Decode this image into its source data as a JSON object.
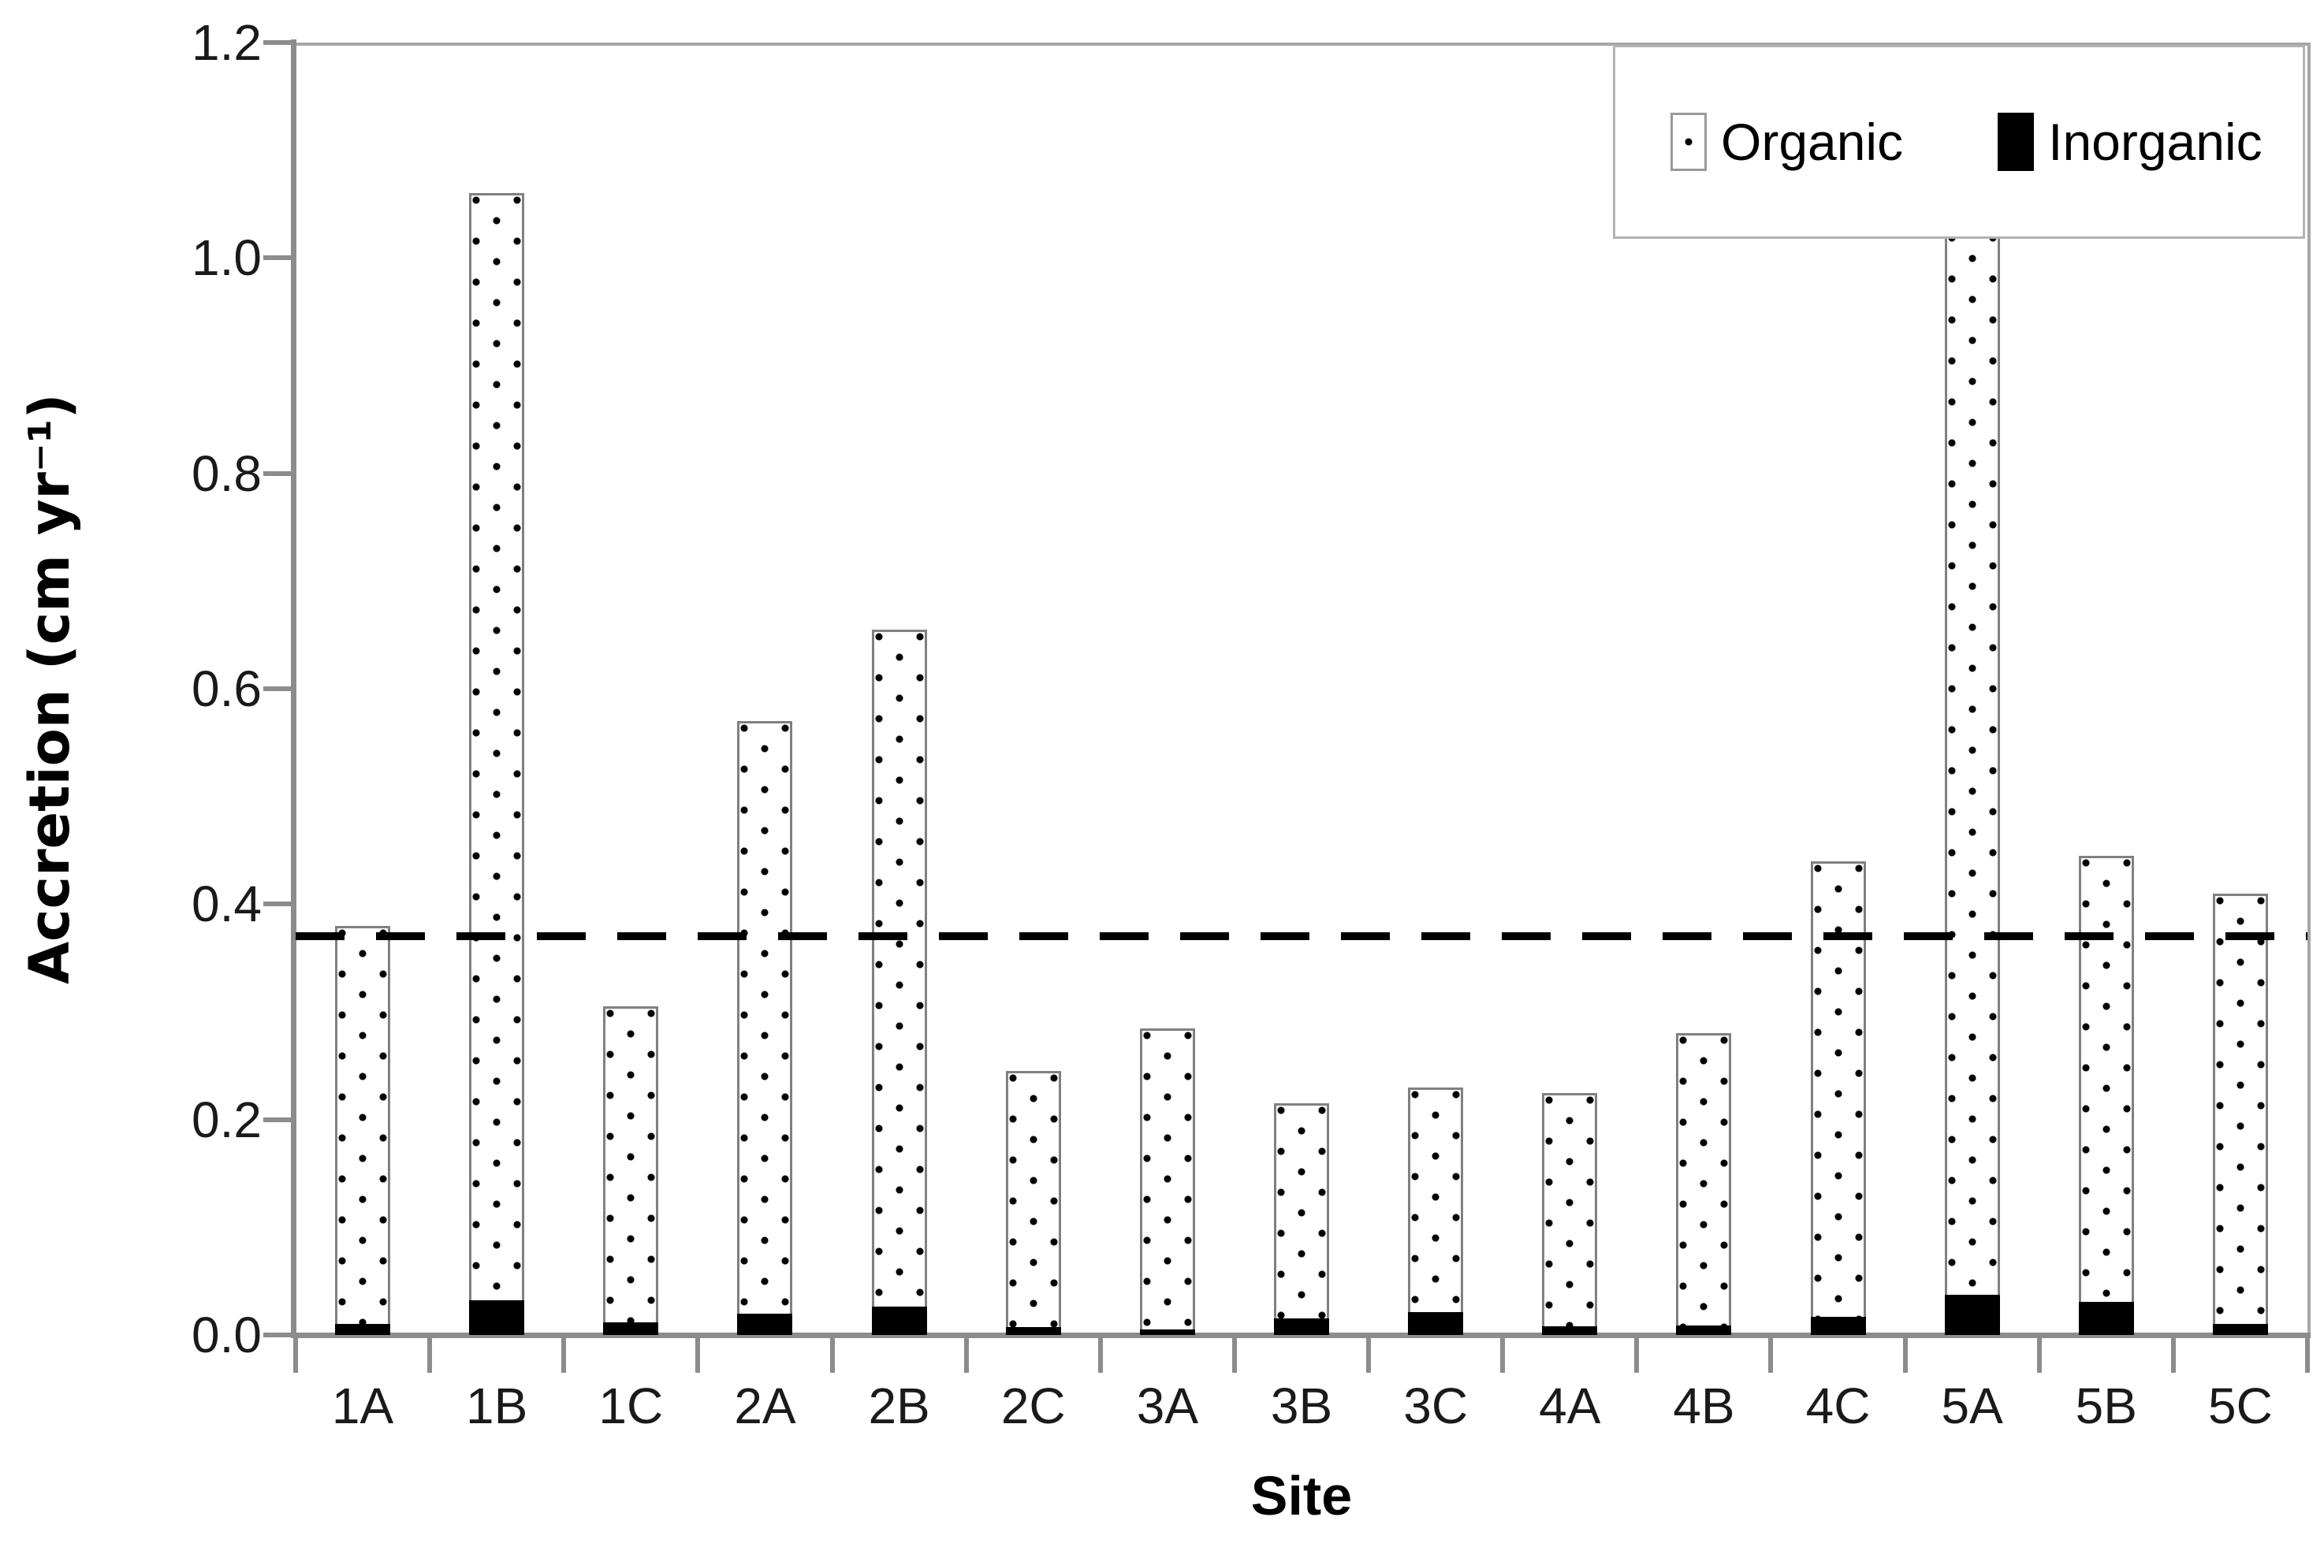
{
  "chart_data": {
    "type": "bar",
    "subtype": "stacked",
    "title": "",
    "xlabel": "Site",
    "ylabel": "Accretion (cm yr⁻¹)",
    "categories": [
      "1A",
      "1B",
      "1C",
      "2A",
      "2B",
      "2C",
      "3A",
      "3B",
      "3C",
      "4A",
      "4B",
      "4C",
      "5A",
      "5B",
      "5C"
    ],
    "series": [
      {
        "name": "Inorganic",
        "color": "#000000",
        "values": [
          0.01,
          0.032,
          0.012,
          0.02,
          0.026,
          0.007,
          0.005,
          0.015,
          0.021,
          0.008,
          0.009,
          0.017,
          0.037,
          0.031,
          0.01
        ]
      },
      {
        "name": "Organic",
        "color": "#ffffff",
        "pattern": "black-dots",
        "values": [
          0.37,
          1.028,
          0.293,
          0.55,
          0.629,
          0.238,
          0.28,
          0.2,
          0.209,
          0.217,
          0.271,
          0.423,
          0.988,
          0.414,
          0.4
        ]
      }
    ],
    "totals": [
      0.38,
      1.06,
      0.305,
      0.57,
      0.655,
      0.245,
      0.285,
      0.215,
      0.23,
      0.225,
      0.28,
      0.44,
      1.025,
      0.445,
      0.41
    ],
    "ylim": [
      0,
      1.2
    ],
    "ytick_step": 0.2,
    "ytick_labels": [
      "0.0",
      "0.2",
      "0.4",
      "0.6",
      "0.8",
      "1.0",
      "1.2"
    ],
    "reference_line": {
      "value": 0.37,
      "style": "dashed",
      "color": "#000000"
    },
    "legend": {
      "position": "top-right",
      "items": [
        {
          "label": "Organic"
        },
        {
          "label": "Inorganic"
        }
      ]
    },
    "grid": false
  }
}
